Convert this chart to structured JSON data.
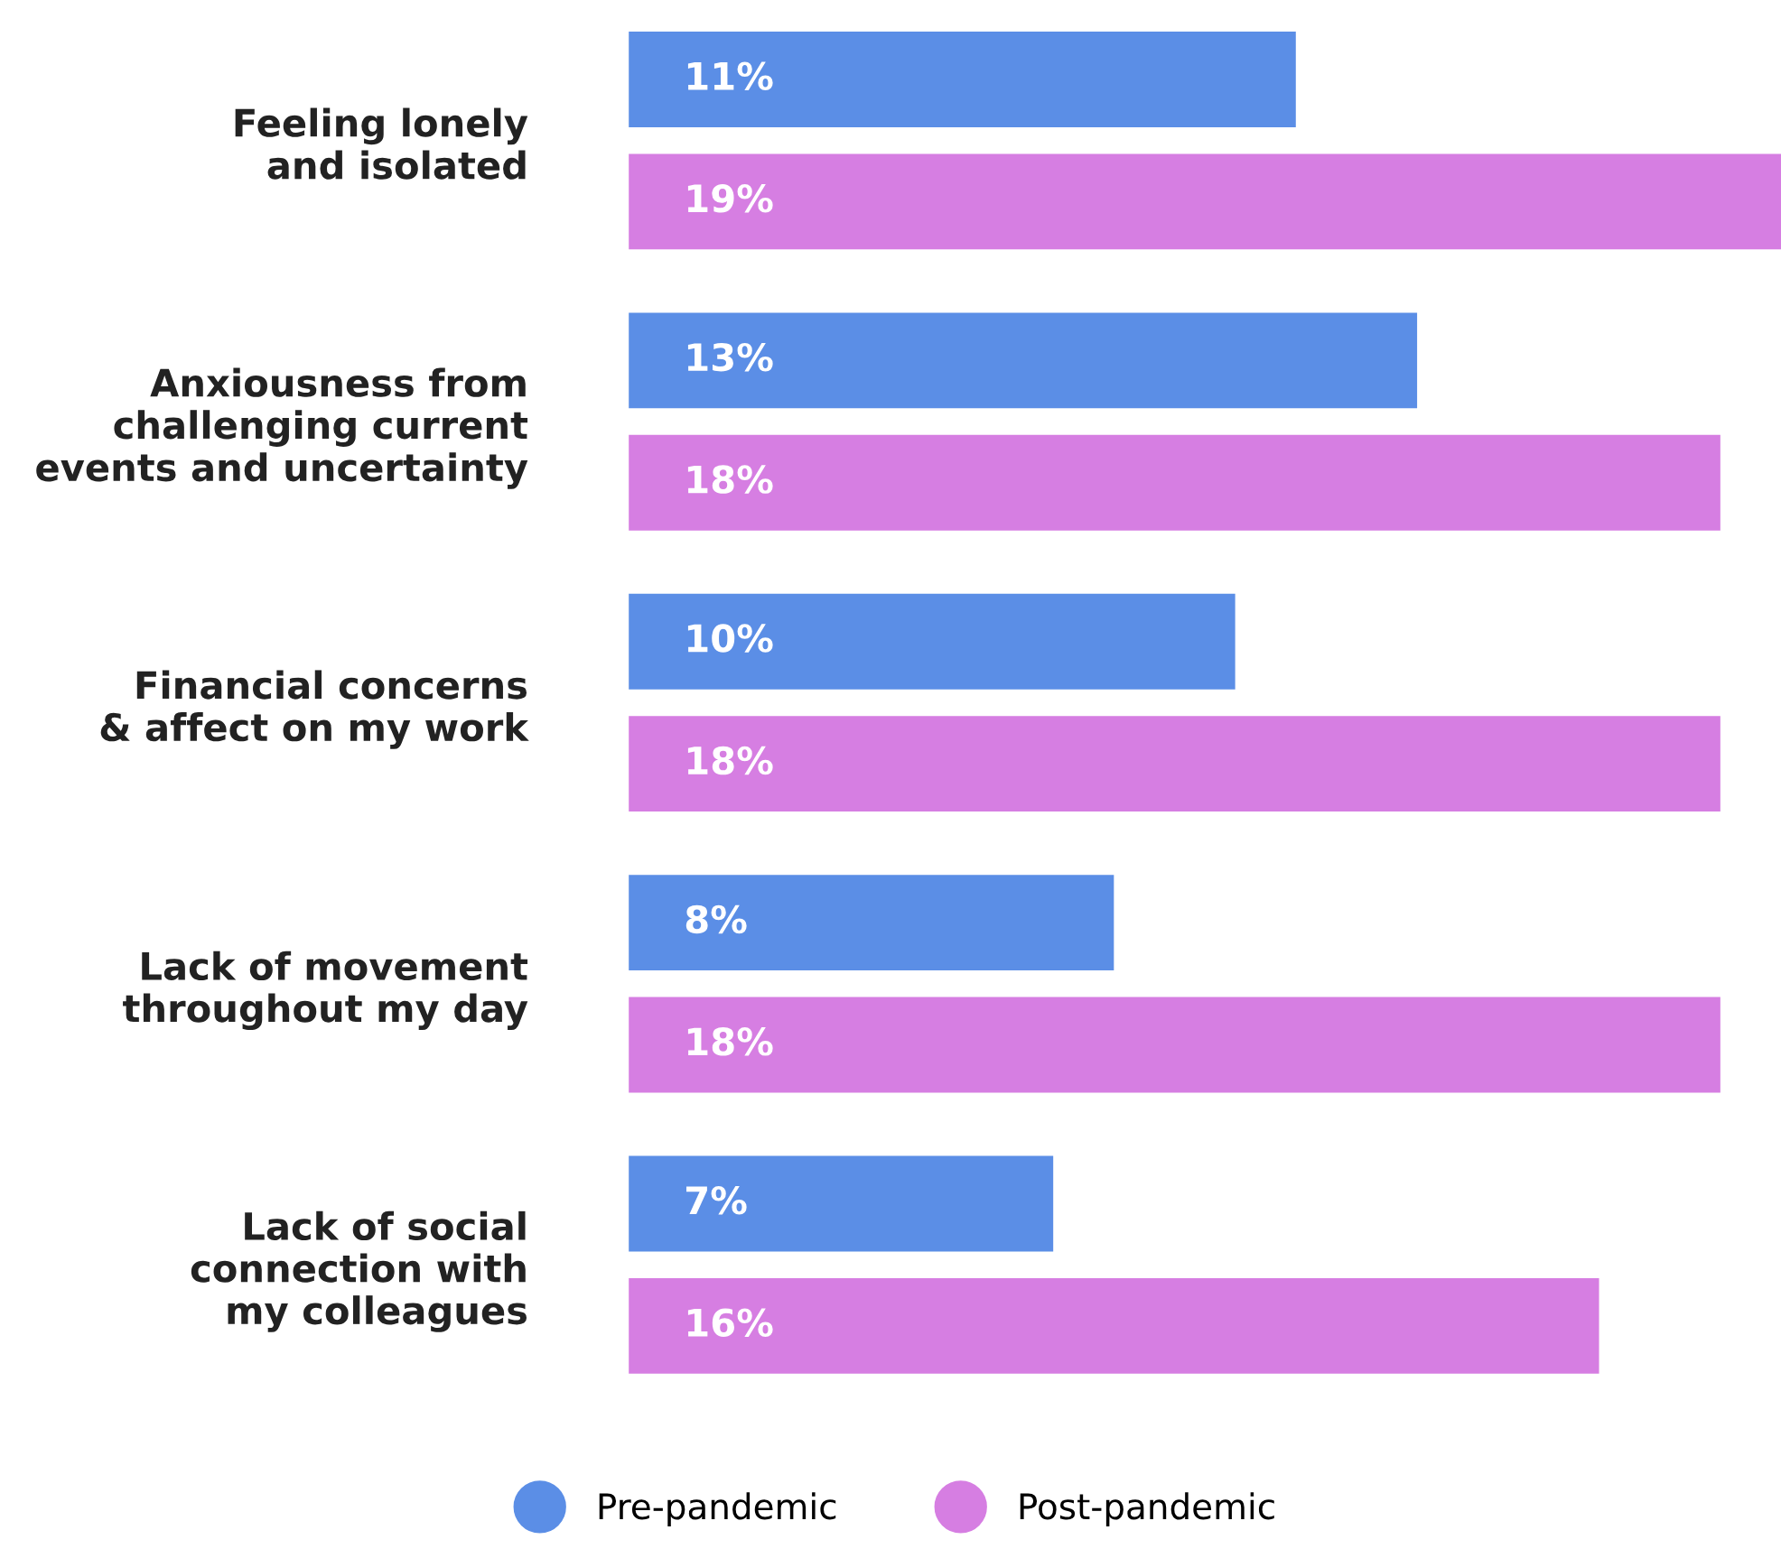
{
  "chart_data": {
    "type": "bar",
    "orientation": "horizontal",
    "categories": [
      "Feeling lonely\nand isolated",
      "Anxiousness from\nchallenging current\nevents and uncertainty",
      "Financial concerns\n& affect on my work",
      "Lack of movement\nthroughout my day",
      "Lack of social\nconnection with\nmy colleagues"
    ],
    "series": [
      {
        "name": "Pre-pandemic",
        "color": "#5b8ee6",
        "values": [
          11,
          13,
          10,
          8,
          7
        ],
        "value_labels": [
          "11%",
          "13%",
          "10%",
          "8%",
          "7%"
        ]
      },
      {
        "name": "Post-pandemic",
        "color": "#d67ee2",
        "values": [
          19,
          18,
          18,
          18,
          16
        ],
        "value_labels": [
          "19%",
          "18%",
          "18%",
          "18%",
          "16%"
        ]
      }
    ],
    "tick_labels": "y",
    "legend": "bottom",
    "grid": false
  }
}
